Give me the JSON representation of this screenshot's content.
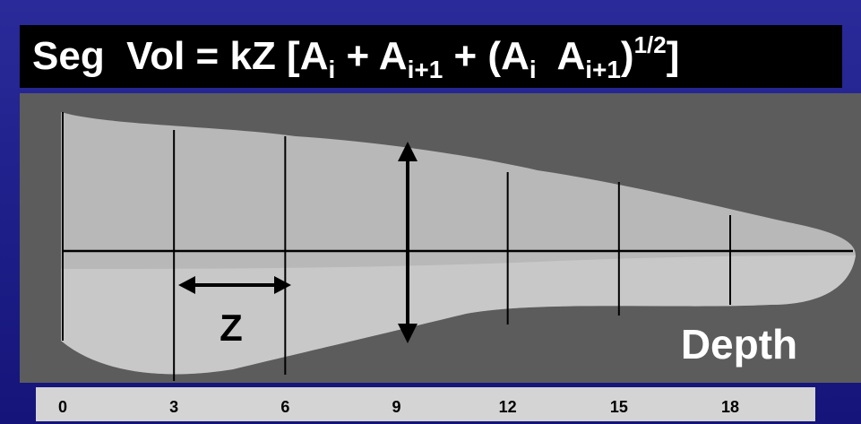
{
  "formula": {
    "parts": [
      "Seg  Vol = kZ [A",
      "i",
      " + A",
      "i+1",
      " + (A",
      "i",
      "  A",
      "i+1",
      ")",
      "1/2",
      "]"
    ]
  },
  "labels": {
    "z": "Z",
    "depth": "Depth"
  },
  "scale": {
    "ticks": [
      0,
      3,
      6,
      9,
      12,
      15,
      18
    ]
  }
}
